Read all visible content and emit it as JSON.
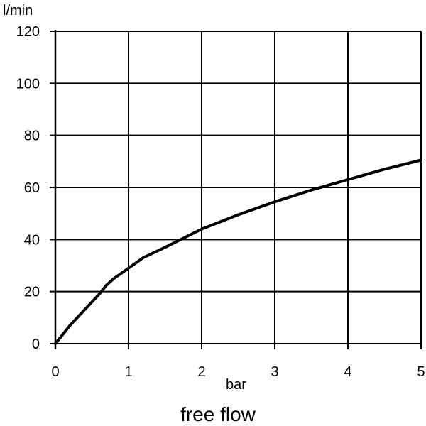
{
  "chart_data": {
    "type": "line",
    "ylabel": "l/min",
    "xlabel": "bar",
    "caption": "free flow",
    "xlim": [
      0,
      5
    ],
    "ylim": [
      0,
      120
    ],
    "xticks": [
      0,
      1,
      2,
      3,
      4,
      5
    ],
    "yticks": [
      0,
      20,
      40,
      60,
      80,
      100,
      120
    ],
    "grid": true,
    "series": [
      {
        "x": [
          0,
          0.1,
          0.2,
          0.3,
          0.4,
          0.5,
          0.6,
          0.7,
          0.8,
          1.0,
          1.2,
          1.5,
          1.75,
          2.0,
          2.5,
          3.0,
          3.5,
          4.0,
          4.5,
          5.0
        ],
        "y": [
          0,
          3.5,
          7,
          10,
          13,
          16,
          19,
          22.5,
          25,
          29,
          33,
          37,
          40.5,
          44,
          49.5,
          54.5,
          59,
          63,
          67,
          70.5
        ]
      }
    ]
  }
}
